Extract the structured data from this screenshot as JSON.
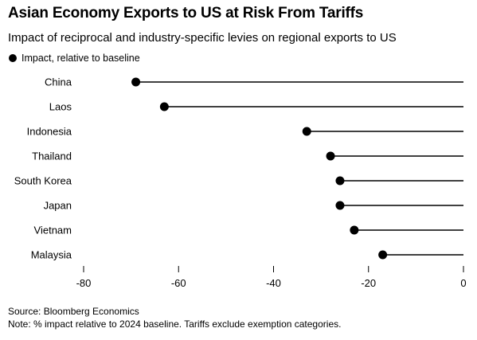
{
  "title": "Asian Economy Exports to US at Risk From Tariffs",
  "subtitle": "Impact of reciprocal and industry-specific levies on regional exports to US",
  "legend": {
    "label": "Impact, relative to baseline"
  },
  "source": "Source: Bloomberg Economics",
  "note": "Note: % impact relative to 2024 baseline. Tariffs exclude exemption categories.",
  "colors": {
    "marker": "#000000",
    "line": "#000000",
    "tick": "#000000"
  },
  "chart_data": {
    "type": "lollipop",
    "categories": [
      "China",
      "Laos",
      "Indonesia",
      "Thailand",
      "South Korea",
      "Japan",
      "Vietnam",
      "Malaysia"
    ],
    "series": [
      {
        "name": "Impact, relative to baseline",
        "values": [
          -69,
          -63,
          -33,
          -28,
          -26,
          -26,
          -23,
          -17
        ]
      }
    ],
    "xlim": [
      -80,
      0
    ],
    "xticks": [
      -80,
      -60,
      -40,
      -20,
      0
    ],
    "xlabel": "",
    "ylabel": "",
    "grid": false,
    "legend_position": "top-left"
  }
}
